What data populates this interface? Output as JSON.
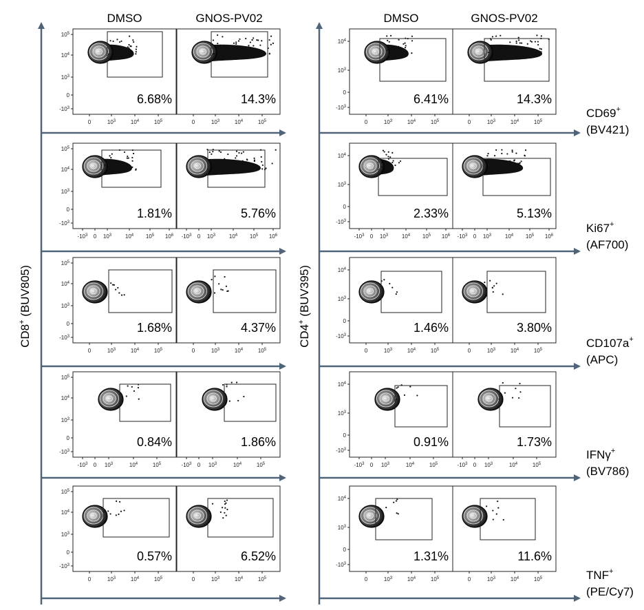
{
  "columns": [
    "DMSO",
    "GNOS-PV02"
  ],
  "y_axis_labels": {
    "left": "CD8+ (BUV805)",
    "right": "CD4+ (BUV395)"
  },
  "y_axis_label_parts": {
    "left": {
      "name": "CD8",
      "sup": "+",
      "channel": "(BUV805)"
    },
    "right": {
      "name": "CD4",
      "sup": "+",
      "channel": "(BUV395)"
    }
  },
  "markers": [
    {
      "name": "CD69",
      "sup": "+",
      "channel": "(BV421)"
    },
    {
      "name": "Ki67",
      "sup": "+",
      "channel": "(AF700)"
    },
    {
      "name": "CD107a",
      "sup": "+",
      "channel": "(APC)"
    },
    {
      "name": "IFNγ",
      "sup": "+",
      "channel": "(BV786)"
    },
    {
      "name": "TNF",
      "sup": "+",
      "channel": "(PE/Cy7)"
    }
  ],
  "percentages": {
    "cd8": [
      [
        "6.68%",
        "14.3%"
      ],
      [
        "1.81%",
        "5.76%"
      ],
      [
        "1.68%",
        "4.37%"
      ],
      [
        "0.84%",
        "1.86%"
      ],
      [
        "0.57%",
        "6.52%"
      ]
    ],
    "cd4": [
      [
        "6.41%",
        "14.3%"
      ],
      [
        "2.33%",
        "5.13%"
      ],
      [
        "1.46%",
        "3.80%"
      ],
      [
        "0.91%",
        "1.73%"
      ],
      [
        "1.31%",
        "11.6%"
      ]
    ]
  },
  "y_ticks": {
    "cd8": [
      [
        "10^5",
        "10^4",
        "10^3",
        "0",
        "-10^3"
      ],
      [
        "10^5",
        "10^4",
        "10^3",
        "0",
        "-10^3"
      ],
      [
        "10^5",
        "10^4",
        "10^3",
        "0",
        "-10^3"
      ],
      [
        "10^5",
        "10^4",
        "10^3",
        "0",
        "-10^3"
      ],
      [
        "10^5",
        "10^4",
        "10^3",
        "0",
        "-10^3"
      ]
    ],
    "cd4": [
      [
        "10^4",
        "10^3",
        "0",
        "-10^3"
      ],
      [
        "10^4",
        "10^3",
        "0",
        "-10^3"
      ],
      [
        "10^4",
        "10^3",
        "0",
        "-10^3"
      ],
      [
        "10^4",
        "10^3",
        "0",
        "-10^3"
      ],
      [
        "10^4",
        "10^3",
        "0",
        "-10^3"
      ]
    ]
  },
  "x_ticks": [
    [
      "0",
      "10^3",
      "10^4",
      "10^5"
    ],
    [
      "-10^3",
      "0",
      "10^3",
      "10^4",
      "10^5",
      "10^6"
    ],
    [
      "0",
      "10^3",
      "10^4",
      "10^5"
    ],
    [
      "-10^3",
      "0",
      "10^3",
      "10^4",
      "10^5"
    ],
    [
      "0",
      "10^3",
      "10^4",
      "10^5"
    ]
  ],
  "colors": {
    "axis": "#4f6478",
    "plot_border": "#222222",
    "density": "#777777"
  }
}
